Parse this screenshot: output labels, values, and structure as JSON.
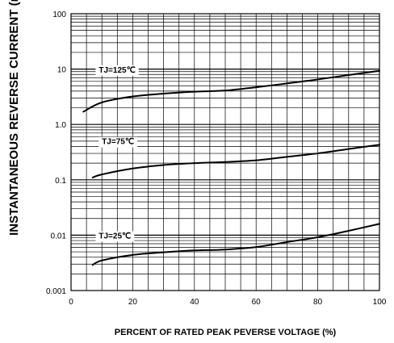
{
  "chart_data": {
    "type": "line",
    "xlabel": "PERCENT OF RATED PEAK PEVERSE VOLTAGE (%)",
    "ylabel": "INSTANTANEOUS REVERSE CURRENT (m",
    "xlim": [
      0,
      100
    ],
    "ylim": [
      0.001,
      100
    ],
    "yscale": "log",
    "grid": true,
    "x_ticks": [
      "0",
      "20",
      "40",
      "60",
      "80",
      "100"
    ],
    "y_ticks": [
      "0.001",
      "0.01",
      "0.1",
      "1.0",
      "10",
      "100"
    ],
    "series": [
      {
        "name": "TJ=125℃",
        "x": [
          4,
          10,
          20,
          30,
          40,
          50,
          60,
          70,
          80,
          90,
          100
        ],
        "y": [
          1.7,
          2.5,
          3.2,
          3.6,
          3.9,
          4.1,
          4.7,
          5.5,
          6.5,
          7.8,
          9.3
        ]
      },
      {
        "name": "TJ=75℃",
        "x": [
          7,
          10,
          20,
          30,
          40,
          50,
          60,
          70,
          80,
          90,
          100
        ],
        "y": [
          0.11,
          0.125,
          0.16,
          0.185,
          0.2,
          0.21,
          0.225,
          0.26,
          0.3,
          0.36,
          0.43
        ]
      },
      {
        "name": "TJ=25℃",
        "x": [
          7,
          10,
          20,
          30,
          40,
          50,
          60,
          70,
          80,
          90,
          100
        ],
        "y": [
          0.0029,
          0.0035,
          0.0044,
          0.0049,
          0.0053,
          0.0055,
          0.0061,
          0.0075,
          0.0092,
          0.012,
          0.016
        ]
      }
    ],
    "annotations": [
      {
        "label": "TJ=125℃",
        "x": 9,
        "y": 9.5
      },
      {
        "label": "TJ=75℃",
        "x": 10,
        "y": 0.48
      },
      {
        "label": "TJ=25℃",
        "x": 9,
        "y": 0.0095
      }
    ]
  }
}
